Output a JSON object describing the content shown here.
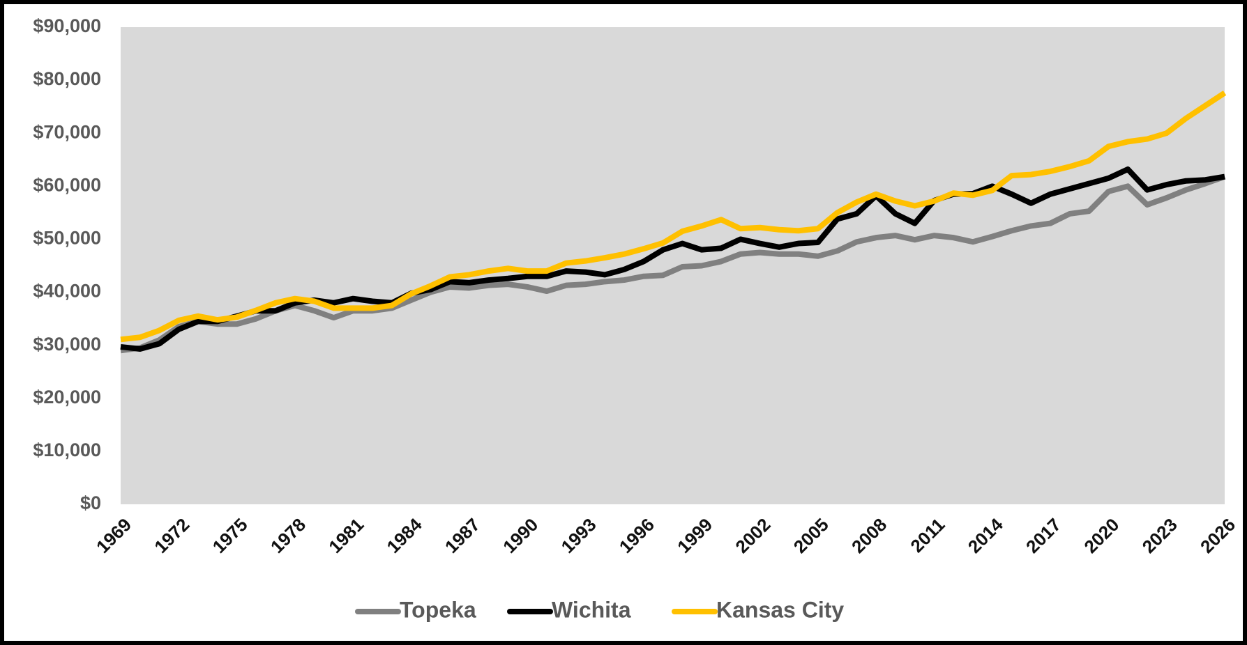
{
  "chart_data": {
    "type": "line",
    "x": [
      1969,
      1970,
      1971,
      1972,
      1973,
      1974,
      1975,
      1976,
      1977,
      1978,
      1979,
      1980,
      1981,
      1982,
      1983,
      1984,
      1985,
      1986,
      1987,
      1988,
      1989,
      1990,
      1991,
      1992,
      1993,
      1994,
      1995,
      1996,
      1997,
      1998,
      1999,
      2000,
      2001,
      2002,
      2003,
      2004,
      2005,
      2006,
      2007,
      2008,
      2009,
      2010,
      2011,
      2012,
      2013,
      2014,
      2015,
      2016,
      2017,
      2018,
      2019,
      2020,
      2021,
      2022,
      2023,
      2024,
      2025,
      2026
    ],
    "series": [
      {
        "name": "Topeka",
        "color": "#808080",
        "values": [
          29000,
          29500,
          31000,
          33500,
          34500,
          34000,
          34000,
          35000,
          36500,
          37500,
          36500,
          35200,
          36500,
          36500,
          37000,
          38500,
          40000,
          41000,
          40800,
          41300,
          41500,
          41000,
          40200,
          41300,
          41500,
          42000,
          42300,
          43000,
          43200,
          44800,
          45000,
          45800,
          47200,
          47500,
          47200,
          47200,
          46800,
          47800,
          49500,
          50300,
          50700,
          49900,
          50700,
          50300,
          49500,
          50500,
          51600,
          52500,
          53000,
          54800,
          55300,
          59000,
          60000,
          56500,
          57800,
          59300,
          60500,
          61800
        ]
      },
      {
        "name": "Wichita",
        "color": "#000000",
        "values": [
          29700,
          29300,
          30300,
          33000,
          34500,
          34500,
          35500,
          36500,
          36500,
          38000,
          38500,
          38000,
          38800,
          38300,
          38000,
          39800,
          40500,
          42000,
          41800,
          42300,
          42600,
          43000,
          43000,
          44000,
          43800,
          43300,
          44300,
          45800,
          48000,
          49200,
          48000,
          48300,
          50000,
          49200,
          48500,
          49200,
          49400,
          53800,
          54800,
          58200,
          54800,
          53000,
          57300,
          58500,
          58600,
          60000,
          58500,
          56800,
          58500,
          59500,
          60500,
          61500,
          63200,
          59300,
          60300,
          61000,
          61200,
          61800
        ]
      },
      {
        "name": "Kansas City",
        "color": "#ffc000",
        "values": [
          31100,
          31500,
          32800,
          34700,
          35500,
          34800,
          35300,
          36600,
          38000,
          38800,
          38300,
          37000,
          37000,
          37000,
          37500,
          39700,
          41200,
          42900,
          43300,
          44000,
          44500,
          44000,
          44000,
          45500,
          45900,
          46500,
          47200,
          48200,
          49300,
          51500,
          52500,
          53700,
          52000,
          52200,
          51800,
          51600,
          52000,
          55000,
          57000,
          58500,
          57200,
          56300,
          57200,
          58700,
          58300,
          59200,
          62000,
          62200,
          62800,
          63700,
          64800,
          67500,
          68400,
          68900,
          70000,
          72800,
          75200,
          77600
        ]
      }
    ],
    "xlim": [
      1969,
      2026
    ],
    "xticks": [
      1969,
      1972,
      1975,
      1978,
      1981,
      1984,
      1987,
      1990,
      1993,
      1996,
      1999,
      2002,
      2005,
      2008,
      2011,
      2014,
      2017,
      2020,
      2023,
      2026
    ],
    "ylim": [
      0,
      90000
    ],
    "yticks": [
      {
        "value": 0,
        "label": "$0"
      },
      {
        "value": 10000,
        "label": "$10,000"
      },
      {
        "value": 20000,
        "label": "$20,000"
      },
      {
        "value": 30000,
        "label": "$30,000"
      },
      {
        "value": 40000,
        "label": "$40,000"
      },
      {
        "value": 50000,
        "label": "$50,000"
      },
      {
        "value": 60000,
        "label": "$60,000"
      },
      {
        "value": 70000,
        "label": "$70,000"
      },
      {
        "value": 80000,
        "label": "$80,000"
      },
      {
        "value": 90000,
        "label": "$90,000"
      }
    ],
    "plot_background": "#d9d9d9",
    "legend": "bottom"
  }
}
